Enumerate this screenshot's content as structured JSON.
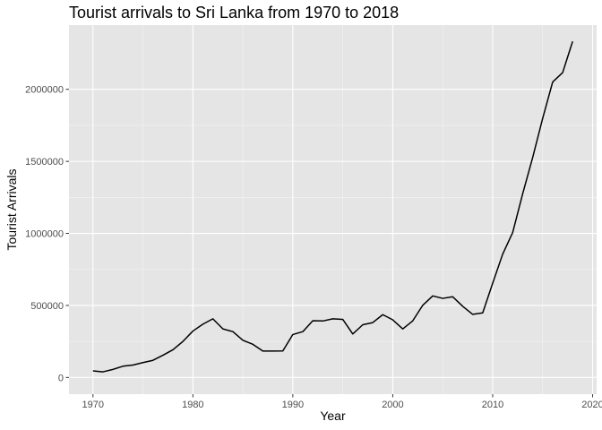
{
  "chart_data": {
    "type": "line",
    "title": "Tourist arrivals to Sri Lanka from 1970 to 2018",
    "xlabel": "Year",
    "ylabel": "Tourist Arrivals",
    "xlim": [
      1967.6,
      2020.4
    ],
    "ylim": [
      -116000,
      2446000
    ],
    "x_ticks": [
      1970,
      1980,
      1990,
      2000,
      2010,
      2020
    ],
    "y_ticks": [
      0,
      500000,
      1000000,
      1500000,
      2000000
    ],
    "x_tick_labels": [
      "1970",
      "1980",
      "1990",
      "2000",
      "2010",
      "2020"
    ],
    "y_tick_labels": [
      "0",
      "500000",
      "1000000",
      "1500000",
      "2000000"
    ],
    "grid": true,
    "colors": {
      "panel_background": "#e5e5e5",
      "grid_major": "#ffffff",
      "line": "#000000",
      "tick_text": "#4d4d4d",
      "tick_mark": "#333333"
    },
    "series": [
      {
        "x": [
          1970,
          1971,
          1972,
          1973,
          1974,
          1975,
          1976,
          1977,
          1978,
          1979,
          1980,
          1981,
          1982,
          1983,
          1984,
          1985,
          1986,
          1987,
          1988,
          1989,
          1990,
          1991,
          1992,
          1993,
          1994,
          1995,
          1996,
          1997,
          1998,
          1999,
          2000,
          2001,
          2002,
          2003,
          2004,
          2005,
          2006,
          2007,
          2008,
          2009,
          2010,
          2011,
          2012,
          2013,
          2014,
          2015,
          2016,
          2017,
          2018
        ],
        "values": [
          46000,
          39000,
          56000,
          78000,
          86000,
          103000,
          119000,
          154000,
          192000,
          250000,
          322000,
          370000,
          407000,
          337000,
          318000,
          258000,
          230000,
          183000,
          183000,
          184000,
          298000,
          318000,
          394000,
          392000,
          407000,
          403000,
          302000,
          366000,
          381000,
          436000,
          400000,
          337000,
          393000,
          501000,
          566000,
          549000,
          560000,
          494000,
          438000,
          448000,
          654000,
          856000,
          1006000,
          1275000,
          1527000,
          1798000,
          2051000,
          2116000,
          2333000
        ]
      }
    ]
  }
}
